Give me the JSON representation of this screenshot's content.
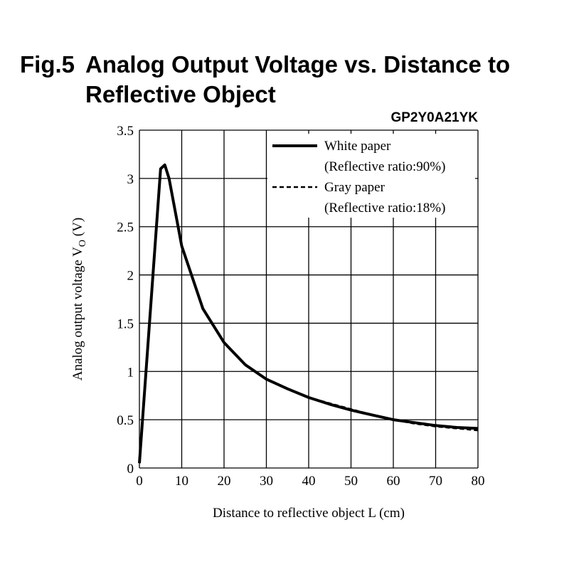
{
  "title": {
    "fig_num": "Fig.5",
    "line1": "Analog Output Voltage vs. Distance to",
    "line2": "Reflective Object"
  },
  "model": "GP2Y0A21YK",
  "chart_data": {
    "type": "line",
    "title": "Fig.5 Analog Output Voltage vs. Distance to Reflective Object",
    "xlabel": "Distance to reflective object L (cm)",
    "ylabel_main": "Analog output voltage V",
    "ylabel_sub": "O",
    "ylabel_unit": " (V)",
    "xlim": [
      0,
      80
    ],
    "ylim": [
      0,
      3.5
    ],
    "x_ticks": [
      "0",
      "10",
      "20",
      "30",
      "40",
      "50",
      "60",
      "70",
      "80"
    ],
    "y_ticks": [
      "0",
      "0.5",
      "1",
      "1.5",
      "2",
      "2.5",
      "3",
      "3.5"
    ],
    "grid": true,
    "legend_position": "top-right",
    "series": [
      {
        "name": "White paper",
        "name_detail": "(Reflective ratio:90%)",
        "style": "solid",
        "x": [
          0,
          5,
          6,
          7,
          10,
          15,
          20,
          25,
          30,
          35,
          40,
          45,
          50,
          55,
          60,
          65,
          70,
          75,
          80
        ],
        "y": [
          0.05,
          3.1,
          3.14,
          3.0,
          2.3,
          1.65,
          1.3,
          1.07,
          0.92,
          0.82,
          0.73,
          0.66,
          0.6,
          0.55,
          0.5,
          0.47,
          0.44,
          0.42,
          0.41
        ]
      },
      {
        "name": "Gray paper",
        "name_detail": "(Reflective ratio:18%)",
        "style": "dashed",
        "x": [
          0,
          5,
          6,
          7,
          10,
          15,
          20,
          25,
          30,
          35,
          40,
          45,
          50,
          55,
          60,
          65,
          70,
          75,
          80
        ],
        "y": [
          0.05,
          3.1,
          3.14,
          3.0,
          2.3,
          1.65,
          1.3,
          1.07,
          0.92,
          0.82,
          0.73,
          0.67,
          0.61,
          0.55,
          0.5,
          0.46,
          0.43,
          0.41,
          0.39
        ]
      }
    ]
  }
}
